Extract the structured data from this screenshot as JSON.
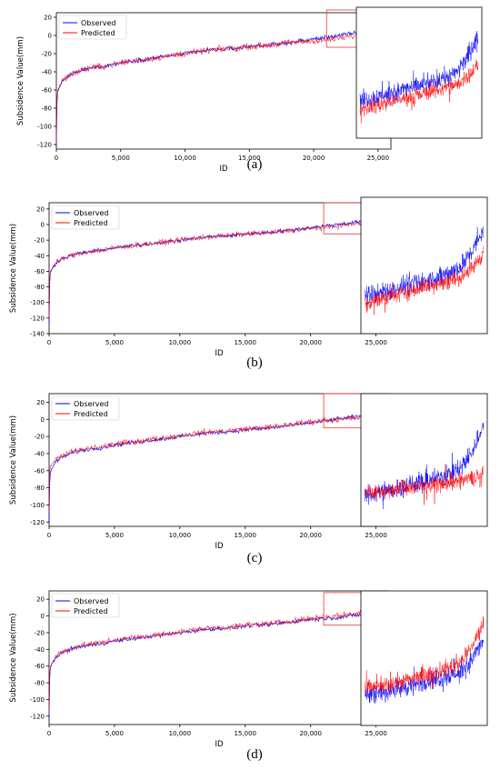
{
  "chart_data": [
    {
      "panel": "(a)",
      "type": "line",
      "xlabel": "ID",
      "ylabel": "Subsidence Value(mm)",
      "xticks": [
        "0",
        "5,000",
        "10,000",
        "15,000",
        "20,000",
        "25,000"
      ],
      "yticks": [
        20,
        0,
        -20,
        -40,
        -60,
        -80,
        -100,
        -120
      ],
      "xlim": [
        0,
        26000
      ],
      "ylim": [
        -125,
        25
      ],
      "legend": "top-left",
      "zoom_region": [
        21000,
        26000
      ],
      "series": [
        {
          "name": "Observed",
          "color": "#0000ff",
          "x": [
            0,
            50,
            100,
            300,
            600,
            1000,
            2000,
            3000,
            4000,
            5000,
            6000,
            7000,
            8000,
            9000,
            10000,
            11000,
            12000,
            13000,
            14000,
            15000,
            16000,
            17000,
            18000,
            19000,
            20000,
            21000,
            22000,
            23000,
            24000,
            25000,
            25500,
            26000
          ],
          "y": [
            -123,
            -75,
            -62,
            -55,
            -48,
            -44,
            -38,
            -35,
            -33,
            -30,
            -28,
            -26,
            -24,
            -22,
            -20,
            -18,
            -16,
            -15,
            -14,
            -12,
            -11,
            -10,
            -8,
            -6,
            -4,
            -2,
            0,
            2,
            4,
            7,
            12,
            20
          ]
        },
        {
          "name": "Predicted",
          "color": "#ff0000",
          "x": [
            0,
            50,
            100,
            300,
            600,
            1000,
            2000,
            3000,
            4000,
            5000,
            6000,
            7000,
            8000,
            9000,
            10000,
            11000,
            12000,
            13000,
            14000,
            15000,
            16000,
            17000,
            18000,
            19000,
            20000,
            21000,
            22000,
            23000,
            24000,
            25000,
            25500,
            26000
          ],
          "y": [
            -118,
            -72,
            -60,
            -54,
            -48,
            -44,
            -38,
            -35,
            -33,
            -30,
            -28,
            -26,
            -24,
            -22,
            -20,
            -18,
            -16,
            -15,
            -14,
            -12,
            -11,
            -10,
            -8,
            -7,
            -6,
            -5,
            -3,
            -1,
            1,
            3,
            6,
            10
          ]
        }
      ]
    },
    {
      "panel": "(b)",
      "type": "line",
      "xlabel": "ID",
      "ylabel": "Subsidence Value(mm)",
      "xticks": [
        "0",
        "5,000",
        "10,000",
        "15,000",
        "20,000",
        "25,000"
      ],
      "yticks": [
        20,
        0,
        -20,
        -40,
        -60,
        -80,
        -100,
        -120,
        -140
      ],
      "xlim": [
        0,
        26000
      ],
      "ylim": [
        -140,
        28
      ],
      "legend": "top-left",
      "zoom_region": [
        21000,
        26000
      ],
      "series": [
        {
          "name": "Observed",
          "color": "#0000ff",
          "x": [
            0,
            50,
            100,
            300,
            600,
            1000,
            2000,
            3000,
            4000,
            5000,
            6000,
            7000,
            8000,
            9000,
            10000,
            11000,
            12000,
            13000,
            14000,
            15000,
            16000,
            17000,
            18000,
            19000,
            20000,
            21000,
            22000,
            23000,
            24000,
            25000,
            25500,
            26000
          ],
          "y": [
            -128,
            -75,
            -62,
            -55,
            -48,
            -44,
            -38,
            -35,
            -33,
            -30,
            -28,
            -26,
            -24,
            -22,
            -20,
            -18,
            -16,
            -15,
            -14,
            -12,
            -11,
            -10,
            -8,
            -6,
            -4,
            -2,
            0,
            2,
            4,
            7,
            12,
            20
          ]
        },
        {
          "name": "Predicted",
          "color": "#ff0000",
          "x": [
            0,
            50,
            100,
            300,
            600,
            1000,
            2000,
            3000,
            4000,
            5000,
            6000,
            7000,
            8000,
            9000,
            10000,
            11000,
            12000,
            13000,
            14000,
            15000,
            16000,
            17000,
            18000,
            19000,
            20000,
            21000,
            22000,
            23000,
            24000,
            25000,
            25500,
            26000
          ],
          "y": [
            -120,
            -72,
            -60,
            -54,
            -48,
            -44,
            -38,
            -35,
            -33,
            -30,
            -28,
            -26,
            -24,
            -22,
            -20,
            -18,
            -16,
            -15,
            -14,
            -12,
            -11,
            -10,
            -8,
            -7,
            -5,
            -4,
            -2,
            0,
            2,
            4,
            7,
            12
          ]
        }
      ]
    },
    {
      "panel": "(c)",
      "type": "line",
      "xlabel": "ID",
      "ylabel": "Subsidence Value(mm)",
      "xticks": [
        "0",
        "5,000",
        "10,000",
        "15,000",
        "20,000",
        "25,000"
      ],
      "yticks": [
        20,
        0,
        -20,
        -40,
        -60,
        -80,
        -100,
        -120
      ],
      "xlim": [
        0,
        26000
      ],
      "ylim": [
        -125,
        30
      ],
      "legend": "top-left",
      "zoom_region": [
        21000,
        26000
      ],
      "series": [
        {
          "name": "Observed",
          "color": "#0000ff",
          "x": [
            0,
            50,
            100,
            300,
            600,
            1000,
            2000,
            3000,
            4000,
            5000,
            6000,
            7000,
            8000,
            9000,
            10000,
            11000,
            12000,
            13000,
            14000,
            15000,
            16000,
            17000,
            18000,
            19000,
            20000,
            21000,
            22000,
            23000,
            24000,
            25000,
            25500,
            26000
          ],
          "y": [
            -122,
            -75,
            -62,
            -55,
            -48,
            -44,
            -38,
            -35,
            -33,
            -30,
            -28,
            -26,
            -24,
            -22,
            -20,
            -18,
            -16,
            -15,
            -14,
            -12,
            -11,
            -10,
            -8,
            -6,
            -4,
            -2,
            0,
            2,
            4,
            7,
            12,
            22
          ]
        },
        {
          "name": "Predicted",
          "color": "#ff0000",
          "x": [
            0,
            50,
            100,
            300,
            600,
            1000,
            2000,
            3000,
            4000,
            5000,
            6000,
            7000,
            8000,
            9000,
            10000,
            11000,
            12000,
            13000,
            14000,
            15000,
            16000,
            17000,
            18000,
            19000,
            20000,
            21000,
            22000,
            23000,
            24000,
            25000,
            25500,
            26000
          ],
          "y": [
            -110,
            -65,
            -55,
            -50,
            -46,
            -42,
            -37,
            -34,
            -32,
            -29,
            -27,
            -25,
            -23,
            -21,
            -19,
            -17,
            -15,
            -14,
            -13,
            -11,
            -10,
            -9,
            -7,
            -5,
            -3,
            -1,
            0,
            1,
            2,
            3,
            4,
            5
          ]
        }
      ]
    },
    {
      "panel": "(d)",
      "type": "line",
      "xlabel": "ID",
      "ylabel": "Subsidence Value(mm)",
      "xticks": [
        "0",
        "5,000",
        "10,000",
        "15,000",
        "20,000",
        "25,000"
      ],
      "yticks": [
        20,
        0,
        -20,
        -40,
        -60,
        -80,
        -100,
        -120
      ],
      "xlim": [
        0,
        26000
      ],
      "ylim": [
        -130,
        30
      ],
      "legend": "top-left",
      "zoom_region": [
        21000,
        26000
      ],
      "series": [
        {
          "name": "Observed",
          "color": "#0000ff",
          "x": [
            0,
            50,
            100,
            300,
            600,
            1000,
            2000,
            3000,
            4000,
            5000,
            6000,
            7000,
            8000,
            9000,
            10000,
            11000,
            12000,
            13000,
            14000,
            15000,
            16000,
            17000,
            18000,
            19000,
            20000,
            21000,
            22000,
            23000,
            24000,
            25000,
            25500,
            26000
          ],
          "y": [
            -124,
            -75,
            -62,
            -55,
            -48,
            -44,
            -38,
            -35,
            -33,
            -30,
            -28,
            -26,
            -24,
            -22,
            -20,
            -18,
            -16,
            -15,
            -14,
            -12,
            -11,
            -10,
            -8,
            -6,
            -4,
            -3,
            -2,
            0,
            2,
            4,
            8,
            14
          ]
        },
        {
          "name": "Predicted",
          "color": "#ff0000",
          "x": [
            0,
            50,
            100,
            300,
            600,
            1000,
            2000,
            3000,
            4000,
            5000,
            6000,
            7000,
            8000,
            9000,
            10000,
            11000,
            12000,
            13000,
            14000,
            15000,
            16000,
            17000,
            18000,
            19000,
            20000,
            21000,
            22000,
            23000,
            24000,
            25000,
            25500,
            26000
          ],
          "y": [
            -118,
            -72,
            -60,
            -54,
            -47,
            -43,
            -37,
            -34,
            -32,
            -29,
            -27,
            -25,
            -23,
            -21,
            -19,
            -17,
            -15,
            -14,
            -13,
            -11,
            -10,
            -9,
            -7,
            -5,
            -3,
            -1,
            0,
            2,
            4,
            7,
            12,
            20
          ]
        }
      ]
    }
  ]
}
